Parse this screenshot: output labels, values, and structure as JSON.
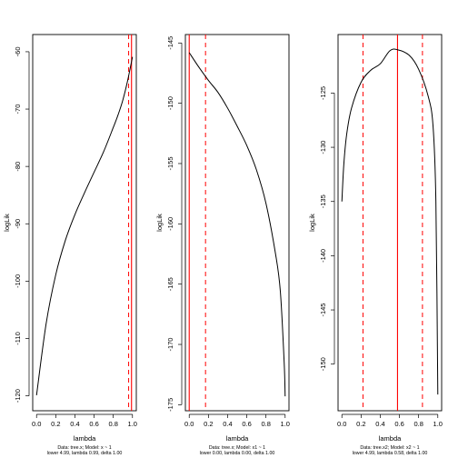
{
  "chart_data": [
    {
      "type": "line",
      "xlabel": "lambda",
      "ylabel": "logLik",
      "xlim": [
        -0.04,
        1.04
      ],
      "ylim": [
        -122.6,
        -57.0
      ],
      "xticks": [
        0.0,
        0.2,
        0.4,
        0.6,
        0.8,
        1.0
      ],
      "xtick_labels": [
        "0.0",
        "0.2",
        "0.4",
        "0.6",
        "0.8",
        "1.0"
      ],
      "yticks": [
        -120,
        -110,
        -100,
        -90,
        -80,
        -70,
        -60
      ],
      "ytick_labels": [
        "-120",
        "-110",
        "-100",
        "-90",
        "-80",
        "-70",
        "-60"
      ],
      "curve": {
        "x": [
          0.0,
          0.1,
          0.2,
          0.3,
          0.4,
          0.5,
          0.6,
          0.7,
          0.8,
          0.85,
          0.9,
          0.95,
          1.0
        ],
        "y": [
          -119.9,
          -107.4,
          -98.9,
          -92.9,
          -88.4,
          -84.6,
          -81.0,
          -77.4,
          -73.2,
          -71.0,
          -68.4,
          -65.0,
          -60.9
        ]
      },
      "vlines": [
        {
          "x": 0.99,
          "style": "solid",
          "color": "#ff0000"
        },
        {
          "x": 0.96,
          "style": "dashed",
          "color": "#ff0000"
        }
      ],
      "caption_lines": [
        "Data: tree.x; Model: x ~ 1",
        "lower 4.99, lambda 0.99, delta 1.00"
      ],
      "grid": false,
      "legend": "none"
    },
    {
      "type": "line",
      "xlabel": "lambda",
      "ylabel": "logLik",
      "xlim": [
        -0.04,
        1.04
      ],
      "ylim": [
        -175.5,
        -144.3
      ],
      "xticks": [
        0.0,
        0.2,
        0.4,
        0.6,
        0.8,
        1.0
      ],
      "xtick_labels": [
        "0.0",
        "0.2",
        "0.4",
        "0.6",
        "0.8",
        "1.0"
      ],
      "yticks": [
        -175,
        -170,
        -165,
        -160,
        -155,
        -150,
        -145
      ],
      "ytick_labels": [
        "-175",
        "-170",
        "-165",
        "-160",
        "-155",
        "-150",
        "-145"
      ],
      "curve": {
        "x": [
          0.0,
          0.1,
          0.2,
          0.3,
          0.4,
          0.5,
          0.6,
          0.7,
          0.8,
          0.9,
          0.95,
          0.99,
          1.0
        ],
        "y": [
          -145.8,
          -147.0,
          -148.1,
          -149.1,
          -150.4,
          -151.9,
          -153.5,
          -155.5,
          -158.3,
          -162.5,
          -165.6,
          -171.5,
          -174.3
        ]
      },
      "vlines": [
        {
          "x": 0.0,
          "style": "solid",
          "color": "#ff0000"
        },
        {
          "x": 0.17,
          "style": "dashed",
          "color": "#ff0000"
        }
      ],
      "caption_lines": [
        "Data: tree.x; Model: x1 ~ 1",
        "lower 0.00, lambda 0.00, delta 1.00"
      ],
      "grid": false,
      "legend": "none"
    },
    {
      "type": "line",
      "xlabel": "lambda",
      "ylabel": "logLik",
      "xlim": [
        -0.04,
        1.04
      ],
      "ylim": [
        -154.3,
        -119.6
      ],
      "xticks": [
        0.0,
        0.2,
        0.4,
        0.6,
        0.8,
        1.0
      ],
      "xtick_labels": [
        "0.0",
        "0.2",
        "0.4",
        "0.6",
        "0.8",
        "1.0"
      ],
      "yticks": [
        -150,
        -145,
        -140,
        -135,
        -130,
        -125
      ],
      "ytick_labels": [
        "-150",
        "-145",
        "-140",
        "-135",
        "-130",
        "-125"
      ],
      "curve": {
        "x": [
          0.0,
          0.02,
          0.05,
          0.1,
          0.2,
          0.3,
          0.4,
          0.5,
          0.58,
          0.7,
          0.8,
          0.9,
          0.95,
          0.98,
          1.0
        ],
        "y": [
          -135.0,
          -131.6,
          -128.8,
          -126.4,
          -124.0,
          -122.9,
          -122.3,
          -121.1,
          -121.0,
          -121.5,
          -122.8,
          -125.3,
          -128.0,
          -135.0,
          -152.8
        ]
      },
      "vlines": [
        {
          "x": 0.58,
          "style": "solid",
          "color": "#ff0000"
        },
        {
          "x": 0.22,
          "style": "dashed",
          "color": "#ff0000"
        },
        {
          "x": 0.84,
          "style": "dashed",
          "color": "#ff0000"
        }
      ],
      "caption_lines": [
        "Data: tree.x2; Model: x2 ~ 1",
        "lower 4.99, lambda 0.58, delta 1.00"
      ],
      "grid": false,
      "legend": "none"
    }
  ]
}
